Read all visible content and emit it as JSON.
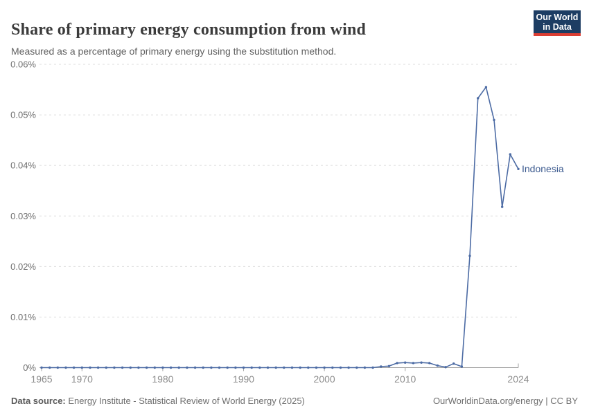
{
  "header": {
    "title": "Share of primary energy consumption from wind",
    "subtitle": "Measured as a percentage of primary energy using the substitution method."
  },
  "logo": {
    "line1": "Our World",
    "line2": "in Data"
  },
  "footer": {
    "source_label": "Data source:",
    "source_text": " Energy Institute - Statistical Review of World Energy (2025)",
    "right_text": "OurWorldinData.org/energy | CC BY"
  },
  "colors": {
    "line": "#4c6ba4",
    "point": "#4c6ba4",
    "series_label": "#3c5a8f",
    "grid": "#dcdcdc",
    "axis": "#a1a1a1",
    "ytick_text": "#6e6e6e",
    "xtick_text": "#8c8c8c"
  },
  "chart_data": {
    "type": "line",
    "title": "Share of primary energy consumption from wind",
    "subtitle": "Measured as a percentage of primary energy using the substitution method.",
    "xlabel": "",
    "ylabel": "",
    "ylim": [
      0,
      0.06
    ],
    "xlim": [
      1965,
      2024
    ],
    "grid": "horizontal-dashed",
    "legend_position": "end-of-line-label",
    "yticks": [
      {
        "value": 0,
        "label": "0%"
      },
      {
        "value": 0.01,
        "label": "0.01%"
      },
      {
        "value": 0.02,
        "label": "0.02%"
      },
      {
        "value": 0.03,
        "label": "0.03%"
      },
      {
        "value": 0.04,
        "label": "0.04%"
      },
      {
        "value": 0.05,
        "label": "0.05%"
      },
      {
        "value": 0.06,
        "label": "0.06%"
      }
    ],
    "xticks": [
      {
        "value": 1965,
        "label": "1965"
      },
      {
        "value": 1970,
        "label": "1970"
      },
      {
        "value": 1980,
        "label": "1980"
      },
      {
        "value": 1990,
        "label": "1990"
      },
      {
        "value": 2000,
        "label": "2000"
      },
      {
        "value": 2010,
        "label": "2010"
      },
      {
        "value": 2024,
        "label": "2024"
      }
    ],
    "series": [
      {
        "name": "Indonesia",
        "end_label": "Indonesia",
        "years": [
          1965,
          1966,
          1967,
          1968,
          1969,
          1970,
          1971,
          1972,
          1973,
          1974,
          1975,
          1976,
          1977,
          1978,
          1979,
          1980,
          1981,
          1982,
          1983,
          1984,
          1985,
          1986,
          1987,
          1988,
          1989,
          1990,
          1991,
          1992,
          1993,
          1994,
          1995,
          1996,
          1997,
          1998,
          1999,
          2000,
          2001,
          2002,
          2003,
          2004,
          2005,
          2006,
          2007,
          2008,
          2009,
          2010,
          2011,
          2012,
          2013,
          2014,
          2015,
          2016,
          2017,
          2018,
          2019,
          2020,
          2021,
          2022,
          2023,
          2024
        ],
        "values": [
          0,
          0,
          0,
          0,
          0,
          0,
          0,
          0,
          0,
          0,
          0,
          0,
          0,
          0,
          0,
          0,
          0,
          0,
          0,
          0,
          0,
          0,
          0,
          0,
          0,
          0,
          0,
          0,
          0,
          0,
          0,
          0,
          0,
          0,
          0,
          0,
          0,
          0,
          0,
          0,
          0,
          0,
          0.0002,
          0.0003,
          0.0009,
          0.001,
          0.0009,
          0.001,
          0.0009,
          0.0004,
          0.0001,
          0.0008,
          0.0002,
          0.0221,
          0.0533,
          0.0555,
          0.049,
          0.0318,
          0.0422,
          0.0393
        ]
      }
    ]
  }
}
